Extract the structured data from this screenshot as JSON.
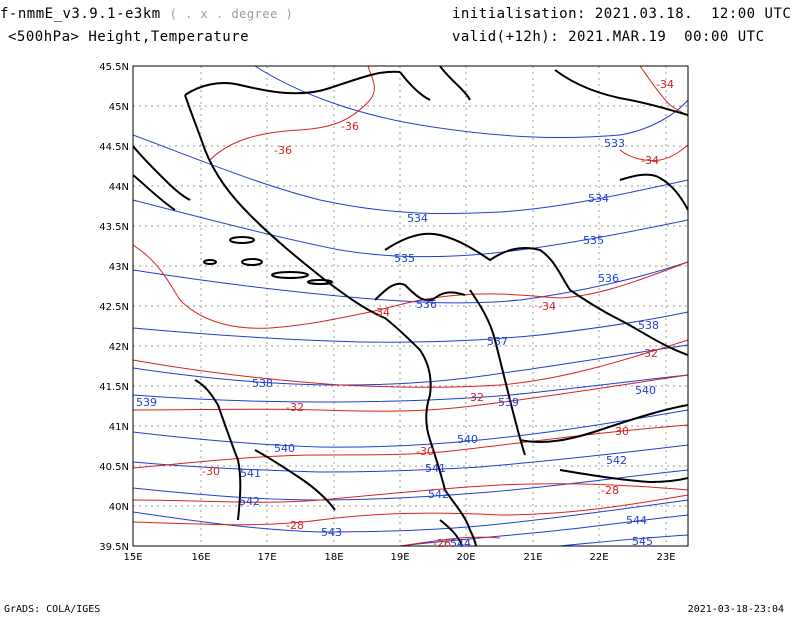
{
  "header": {
    "model": "f-nmmE_v3.9.1-e3km",
    "model_sub": "( . x . degree )",
    "level": "<500hPa> Height,Temperature",
    "init_label": "initialisation:",
    "init_value": "2021.03.18.  12:00 UTC",
    "valid_label": "valid(+12h):",
    "valid_value": "2021.MAR.19  00:00 UTC"
  },
  "footer": {
    "left": "GrADS: COLA/IGES",
    "right": "2021-03-18-23:04"
  },
  "axes": {
    "lon_ticks": [
      "15E",
      "16E",
      "17E",
      "18E",
      "19E",
      "20E",
      "21E",
      "22E",
      "23E"
    ],
    "lat_ticks": [
      "45.5N",
      "45N",
      "44.5N",
      "44N",
      "43.5N",
      "43N",
      "42.5N",
      "42N",
      "41.5N",
      "41N",
      "40.5N",
      "40N",
      "39.5N"
    ]
  },
  "colors": {
    "height": "#1f3fd1",
    "temperature": "#d6231e",
    "coast": "#000000",
    "grid": "#999999"
  },
  "height_labels": [
    "533",
    "534",
    "534",
    "535",
    "535",
    "536",
    "536",
    "537",
    "538",
    "538",
    "539",
    "539",
    "540",
    "540",
    "540",
    "541",
    "541",
    "542",
    "542",
    "542",
    "543",
    "544",
    "544",
    "545"
  ],
  "temp_labels": [
    "-34",
    "-36",
    "-36",
    "-34",
    "-34",
    "-34",
    "-32",
    "-32",
    "-32",
    "-30",
    "-30",
    "-30",
    "-28",
    "-28",
    "-26"
  ]
}
